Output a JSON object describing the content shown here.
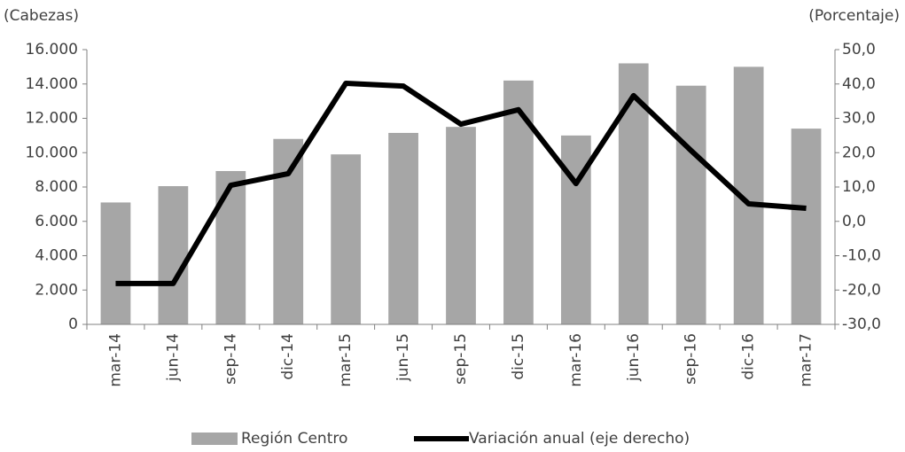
{
  "chart_data": {
    "type": "bar-line",
    "y_label": "(Cabezas)",
    "y2_label": "(Porcentaje)",
    "categories": [
      "mar-14",
      "jun-14",
      "sep-14",
      "dic-14",
      "mar-15",
      "jun-15",
      "sep-15",
      "dic-15",
      "mar-16",
      "jun-16",
      "sep-16",
      "dic-16",
      "mar-17"
    ],
    "series": [
      {
        "name": "Región Centro",
        "type": "bar",
        "color": "#a6a6a6",
        "values": [
          7100,
          8050,
          8930,
          10800,
          9900,
          11150,
          11500,
          14200,
          11000,
          15200,
          13900,
          15000,
          11400
        ]
      },
      {
        "name": "Variación anual (eje derecho)",
        "type": "line",
        "axis": "y2",
        "color": "#000000",
        "values": [
          -18.1,
          -18.1,
          10.5,
          13.9,
          40.2,
          39.4,
          28.3,
          32.5,
          11.0,
          36.6,
          20.6,
          5.1,
          3.8
        ]
      }
    ],
    "ylim": [
      0,
      16000
    ],
    "yticks": [
      0,
      {
        "value": 2000,
        "label": "2.000"
      },
      {
        "value": 4000,
        "label": "4.000"
      },
      {
        "value": 6000,
        "label": "6.000"
      },
      {
        "value": 8000,
        "label": "8.000"
      },
      {
        "value": 10000,
        "label": "10.000"
      },
      {
        "value": 12000,
        "label": "12.000"
      },
      {
        "value": 14000,
        "label": "14.000"
      },
      {
        "value": 16000,
        "label": "16.000"
      }
    ],
    "y2lim": [
      -30,
      50
    ],
    "y2ticks": [
      {
        "value": -30,
        "label": "-30,0"
      },
      {
        "value": -20,
        "label": "-20,0"
      },
      {
        "value": -10,
        "label": "-10,0"
      },
      {
        "value": 0,
        "label": "0,0"
      },
      {
        "value": 10,
        "label": "10,0"
      },
      {
        "value": 20,
        "label": "20,0"
      },
      {
        "value": 30,
        "label": "30,0"
      },
      {
        "value": 40,
        "label": "40,0"
      },
      {
        "value": 50,
        "label": "50,0"
      }
    ],
    "legend": "bottom"
  }
}
